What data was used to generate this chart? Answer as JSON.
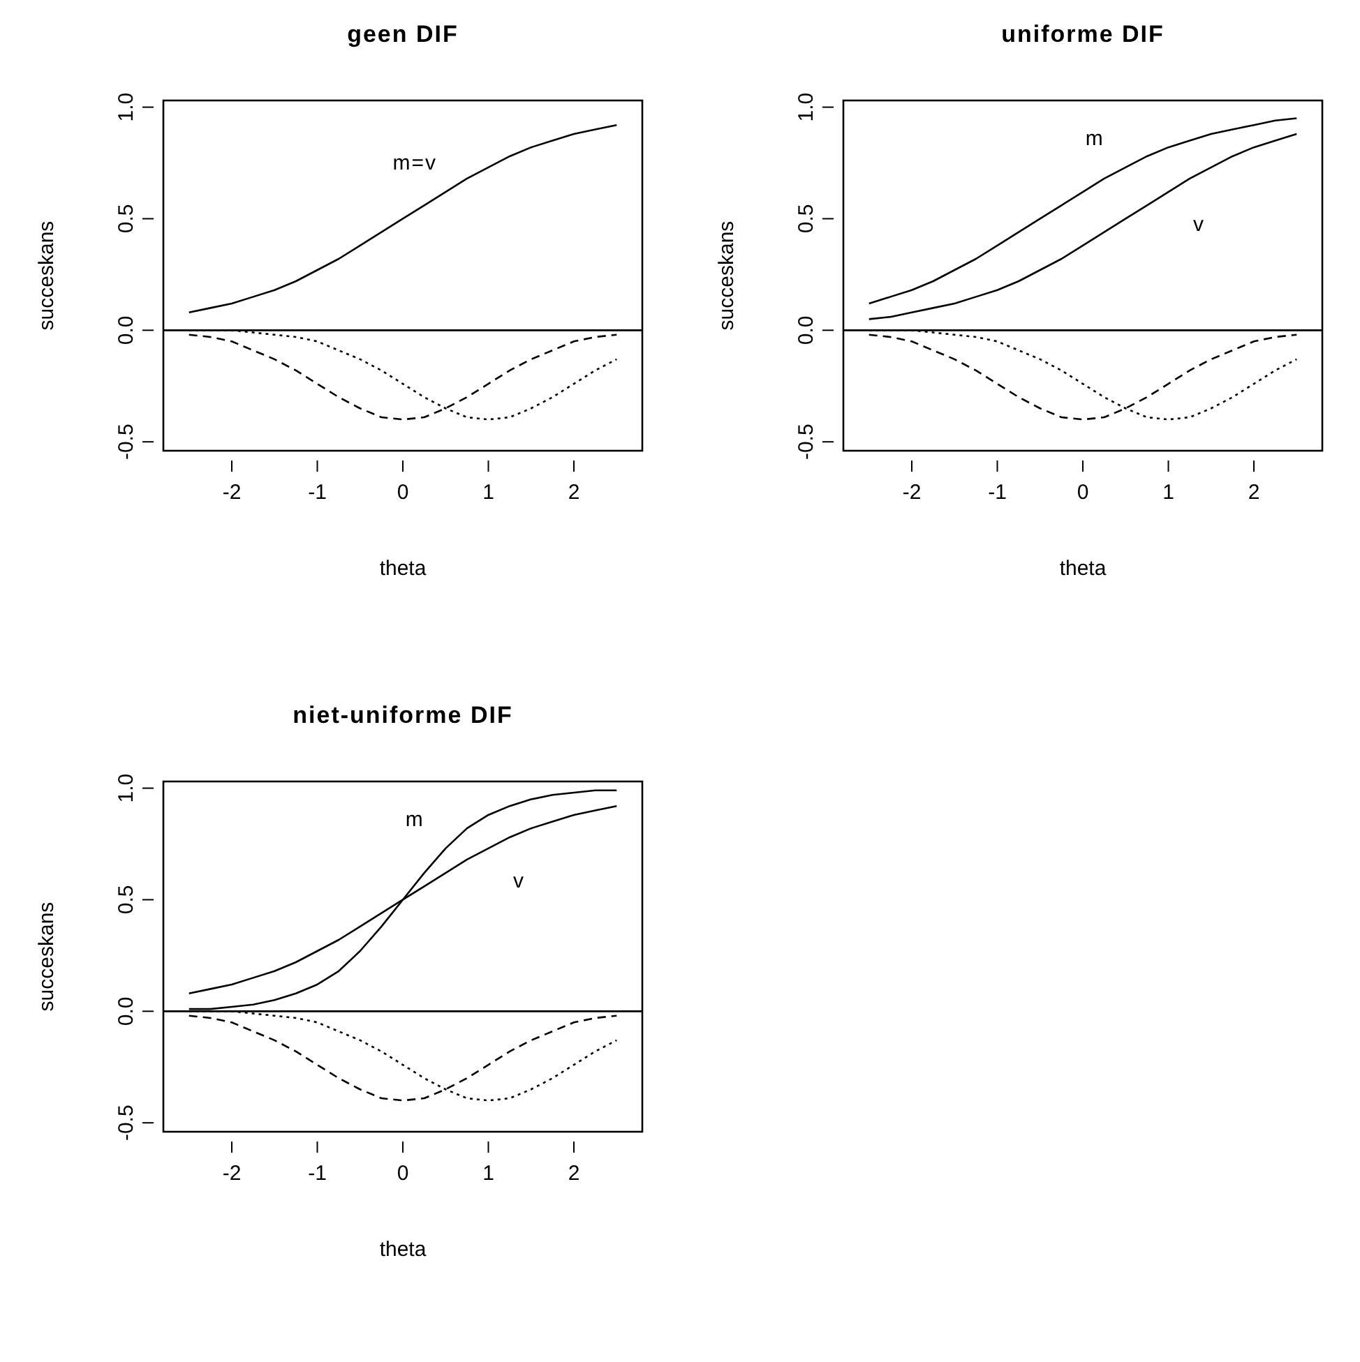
{
  "chart_data": [
    {
      "type": "line",
      "title": "geen DIF",
      "xlabel": "theta",
      "ylabel": "succeskans",
      "x": [
        -2.5,
        -2.25,
        -2,
        -1.75,
        -1.5,
        -1.25,
        -1,
        -0.75,
        -0.5,
        -0.25,
        0,
        0.25,
        0.5,
        0.75,
        1,
        1.25,
        1.5,
        1.75,
        2,
        2.25,
        2.5
      ],
      "xlim": [
        -2.8,
        2.8
      ],
      "ylim": [
        -0.54,
        1.03
      ],
      "xticks": [
        -2,
        -1,
        0,
        1,
        2
      ],
      "yticks": [
        {
          "value": -0.5,
          "label": "-0.5"
        },
        {
          "value": 0,
          "label": "0.0"
        },
        {
          "value": 0.5,
          "label": "0.5"
        },
        {
          "value": 1,
          "label": "1.0"
        }
      ],
      "grid": false,
      "series": [
        {
          "name": "m=v",
          "color": "#000000",
          "line_style": "solid",
          "values": [
            0.08,
            0.1,
            0.12,
            0.15,
            0.18,
            0.22,
            0.27,
            0.32,
            0.38,
            0.44,
            0.5,
            0.56,
            0.62,
            0.68,
            0.73,
            0.78,
            0.82,
            0.85,
            0.88,
            0.9,
            0.92
          ]
        },
        {
          "color": "#000000",
          "line_style": "dashed",
          "values": [
            -0.02,
            -0.03,
            -0.05,
            -0.09,
            -0.13,
            -0.18,
            -0.24,
            -0.3,
            -0.35,
            -0.39,
            -0.4,
            -0.39,
            -0.35,
            -0.3,
            -0.24,
            -0.18,
            -0.13,
            -0.09,
            -0.05,
            -0.03,
            -0.02
          ]
        },
        {
          "color": "#000000",
          "line_style": "dotted",
          "values": [
            0,
            0,
            0,
            -0.01,
            -0.02,
            -0.03,
            -0.05,
            -0.09,
            -0.13,
            -0.18,
            -0.24,
            -0.3,
            -0.35,
            -0.39,
            -0.4,
            -0.39,
            -0.35,
            -0.3,
            -0.24,
            -0.18,
            -0.13
          ]
        }
      ],
      "ref_lines": [
        {
          "axis": "y",
          "value": 0,
          "color": "#000000",
          "line_style": "solid"
        }
      ]
    },
    {
      "type": "line",
      "title": "uniforme DIF",
      "xlabel": "theta",
      "ylabel": "succeskans",
      "x": [
        -2.5,
        -2.25,
        -2,
        -1.75,
        -1.5,
        -1.25,
        -1,
        -0.75,
        -0.5,
        -0.25,
        0,
        0.25,
        0.5,
        0.75,
        1,
        1.25,
        1.5,
        1.75,
        2,
        2.25,
        2.5
      ],
      "xlim": [
        -2.8,
        2.8
      ],
      "ylim": [
        -0.54,
        1.03
      ],
      "xticks": [
        -2,
        -1,
        0,
        1,
        2
      ],
      "yticks": [
        {
          "value": -0.5,
          "label": "-0.5"
        },
        {
          "value": 0,
          "label": "0.0"
        },
        {
          "value": 0.5,
          "label": "0.5"
        },
        {
          "value": 1,
          "label": "1.0"
        }
      ],
      "grid": false,
      "series": [
        {
          "name": "m",
          "color": "#000000",
          "line_style": "solid",
          "values": [
            0.12,
            0.15,
            0.18,
            0.22,
            0.27,
            0.32,
            0.38,
            0.44,
            0.5,
            0.56,
            0.62,
            0.68,
            0.73,
            0.78,
            0.82,
            0.85,
            0.88,
            0.9,
            0.92,
            0.94,
            0.95
          ]
        },
        {
          "name": "v",
          "color": "#000000",
          "line_style": "solid",
          "values": [
            0.05,
            0.06,
            0.08,
            0.1,
            0.12,
            0.15,
            0.18,
            0.22,
            0.27,
            0.32,
            0.38,
            0.44,
            0.5,
            0.56,
            0.62,
            0.68,
            0.73,
            0.78,
            0.82,
            0.85,
            0.88
          ]
        },
        {
          "color": "#000000",
          "line_style": "dashed",
          "values": [
            -0.02,
            -0.03,
            -0.05,
            -0.09,
            -0.13,
            -0.18,
            -0.24,
            -0.3,
            -0.35,
            -0.39,
            -0.4,
            -0.39,
            -0.35,
            -0.3,
            -0.24,
            -0.18,
            -0.13,
            -0.09,
            -0.05,
            -0.03,
            -0.02
          ]
        },
        {
          "color": "#000000",
          "line_style": "dotted",
          "values": [
            0,
            0,
            0,
            -0.01,
            -0.02,
            -0.03,
            -0.05,
            -0.09,
            -0.13,
            -0.18,
            -0.24,
            -0.3,
            -0.35,
            -0.39,
            -0.4,
            -0.39,
            -0.35,
            -0.3,
            -0.24,
            -0.18,
            -0.13
          ]
        }
      ],
      "ref_lines": [
        {
          "axis": "y",
          "value": 0,
          "color": "#000000",
          "line_style": "solid"
        }
      ]
    },
    {
      "type": "line",
      "title": "niet-uniforme DIF",
      "xlabel": "theta",
      "ylabel": "succeskans",
      "x": [
        -2.5,
        -2.25,
        -2,
        -1.75,
        -1.5,
        -1.25,
        -1,
        -0.75,
        -0.5,
        -0.25,
        0,
        0.25,
        0.5,
        0.75,
        1,
        1.25,
        1.5,
        1.75,
        2,
        2.25,
        2.5
      ],
      "xlim": [
        -2.8,
        2.8
      ],
      "ylim": [
        -0.54,
        1.03
      ],
      "xticks": [
        -2,
        -1,
        0,
        1,
        2
      ],
      "yticks": [
        {
          "value": -0.5,
          "label": "-0.5"
        },
        {
          "value": 0,
          "label": "0.0"
        },
        {
          "value": 0.5,
          "label": "0.5"
        },
        {
          "value": 1,
          "label": "1.0"
        }
      ],
      "grid": false,
      "series": [
        {
          "name": "m",
          "color": "#000000",
          "line_style": "solid",
          "values": [
            0.01,
            0.01,
            0.02,
            0.03,
            0.05,
            0.08,
            0.12,
            0.18,
            0.27,
            0.38,
            0.5,
            0.62,
            0.73,
            0.82,
            0.88,
            0.92,
            0.95,
            0.97,
            0.98,
            0.99,
            0.99
          ]
        },
        {
          "name": "v",
          "color": "#000000",
          "line_style": "solid",
          "values": [
            0.08,
            0.1,
            0.12,
            0.15,
            0.18,
            0.22,
            0.27,
            0.32,
            0.38,
            0.44,
            0.5,
            0.56,
            0.62,
            0.68,
            0.73,
            0.78,
            0.82,
            0.85,
            0.88,
            0.9,
            0.92
          ]
        },
        {
          "color": "#000000",
          "line_style": "dashed",
          "values": [
            -0.02,
            -0.03,
            -0.05,
            -0.09,
            -0.13,
            -0.18,
            -0.24,
            -0.3,
            -0.35,
            -0.39,
            -0.4,
            -0.39,
            -0.35,
            -0.3,
            -0.24,
            -0.18,
            -0.13,
            -0.09,
            -0.05,
            -0.03,
            -0.02
          ]
        },
        {
          "color": "#000000",
          "line_style": "dotted",
          "values": [
            0,
            0,
            0,
            -0.01,
            -0.02,
            -0.03,
            -0.05,
            -0.09,
            -0.13,
            -0.18,
            -0.24,
            -0.3,
            -0.35,
            -0.39,
            -0.4,
            -0.39,
            -0.35,
            -0.3,
            -0.24,
            -0.18,
            -0.13
          ]
        }
      ],
      "ref_lines": [
        {
          "axis": "y",
          "value": 0,
          "color": "#000000",
          "line_style": "solid"
        }
      ]
    }
  ]
}
